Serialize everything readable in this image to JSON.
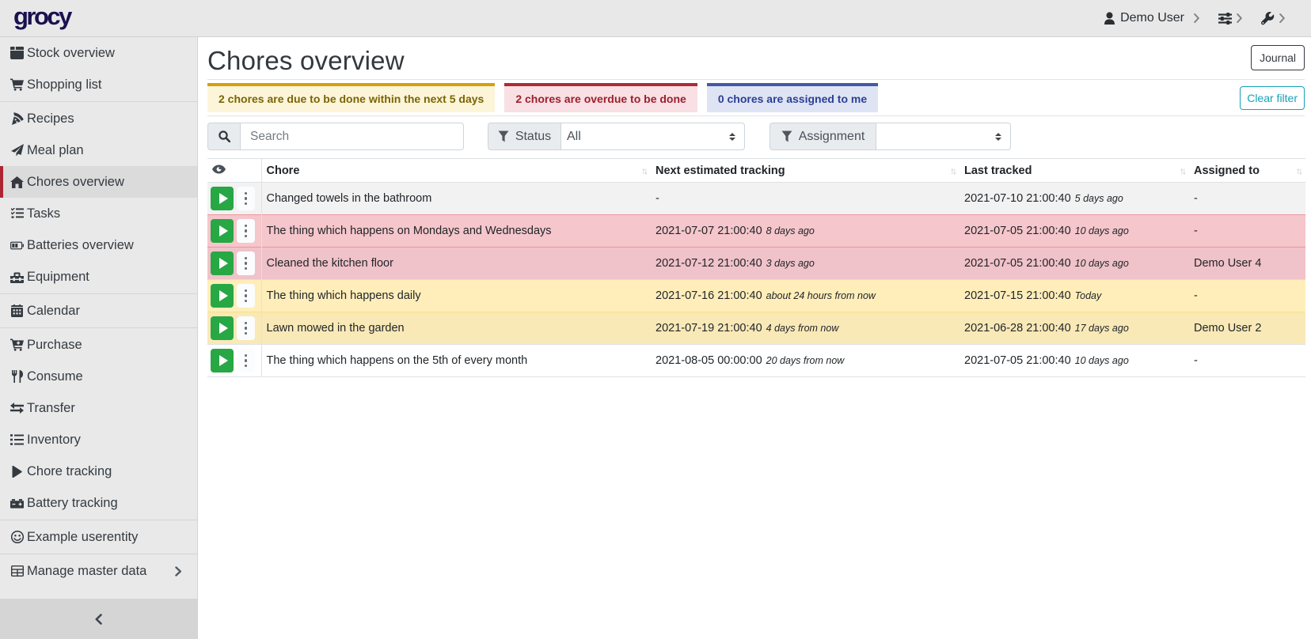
{
  "navbar": {
    "brand": "grocy",
    "user_label": "Demo User",
    "icons": [
      "user-icon",
      "sliders-icon",
      "wrench-icon"
    ]
  },
  "sidebar": {
    "items": [
      {
        "label": "Stock overview",
        "icon": "box"
      },
      {
        "label": "Shopping list",
        "icon": "shopping-cart"
      },
      {
        "divider": true
      },
      {
        "label": "Recipes",
        "icon": "pizza-slice"
      },
      {
        "label": "Meal plan",
        "icon": "paper-plane"
      },
      {
        "label": "Chores overview",
        "icon": "home",
        "active": true
      },
      {
        "label": "Tasks",
        "icon": "tasks"
      },
      {
        "label": "Batteries overview",
        "icon": "battery"
      },
      {
        "label": "Equipment",
        "icon": "toolbox"
      },
      {
        "divider": true
      },
      {
        "label": "Calendar",
        "icon": "calendar"
      },
      {
        "divider": true
      },
      {
        "label": "Purchase",
        "icon": "cart-plus"
      },
      {
        "label": "Consume",
        "icon": "utensils"
      },
      {
        "label": "Transfer",
        "icon": "exchange"
      },
      {
        "label": "Inventory",
        "icon": "list"
      },
      {
        "label": "Chore tracking",
        "icon": "play"
      },
      {
        "label": "Battery tracking",
        "icon": "car-battery"
      },
      {
        "divider": true
      },
      {
        "label": "Example userentity",
        "icon": "smile"
      },
      {
        "divider": true
      },
      {
        "label": "Manage master data",
        "icon": "table",
        "chevron": true
      }
    ]
  },
  "page": {
    "title": "Chores overview",
    "journal_button": "Journal",
    "clear_filter_button": "Clear filter"
  },
  "status_boxes": [
    {
      "text": "2 chores are due to be done within the next 5 days",
      "border": "#d3a10e",
      "bg": "#fdf5d9",
      "fg": "#7a6505"
    },
    {
      "text": "2 chores are overdue to be done",
      "border": "#b02a37",
      "bg": "#f8e0e4",
      "fg": "#9c1f2e"
    },
    {
      "text": "0 chores are assigned to me",
      "border": "#4259a8",
      "bg": "#dfe4f4",
      "fg": "#2b3f94"
    }
  ],
  "filters": {
    "search_placeholder": "Search",
    "status_label": "Status",
    "status_value": "All",
    "assignment_label": "Assignment",
    "assignment_value": ""
  },
  "table": {
    "columns": {
      "chore": "Chore",
      "next": "Next estimated tracking",
      "last": "Last tracked",
      "assigned": "Assigned to"
    },
    "rows": [
      {
        "chore": "Changed towels in the bathroom",
        "next": "-",
        "next_ago": "",
        "last": "2021-07-10 21:00:40",
        "last_ago": "5 days ago",
        "assigned": "-",
        "state": "normal"
      },
      {
        "chore": "The thing which happens on Mondays and Wednesdays",
        "next": "2021-07-07 21:00:40",
        "next_ago": "8 days ago",
        "last": "2021-07-05 21:00:40",
        "last_ago": "10 days ago",
        "assigned": "-",
        "state": "overdue"
      },
      {
        "chore": "Cleaned the kitchen floor",
        "next": "2021-07-12 21:00:40",
        "next_ago": "3 days ago",
        "last": "2021-07-05 21:00:40",
        "last_ago": "10 days ago",
        "assigned": "Demo User 4",
        "state": "overdue"
      },
      {
        "chore": "The thing which happens daily",
        "next": "2021-07-16 21:00:40",
        "next_ago": "about 24 hours from now",
        "last": "2021-07-15 21:00:40",
        "last_ago": "Today",
        "assigned": "-",
        "state": "due"
      },
      {
        "chore": "Lawn mowed in the garden",
        "next": "2021-07-19 21:00:40",
        "next_ago": "4 days from now",
        "last": "2021-06-28 21:00:40",
        "last_ago": "17 days ago",
        "assigned": "Demo User 2",
        "state": "due"
      },
      {
        "chore": "The thing which happens on the 5th of every month",
        "next": "2021-08-05 00:00:00",
        "next_ago": "20 days from now",
        "last": "2021-07-05 21:00:40",
        "last_ago": "10 days ago",
        "assigned": "-",
        "state": "normal"
      }
    ]
  },
  "colors": {
    "accent_active": "#ad2533",
    "success_green": "#28a745",
    "info_teal": "#17a2b8",
    "brand_navy": "#19114f"
  }
}
